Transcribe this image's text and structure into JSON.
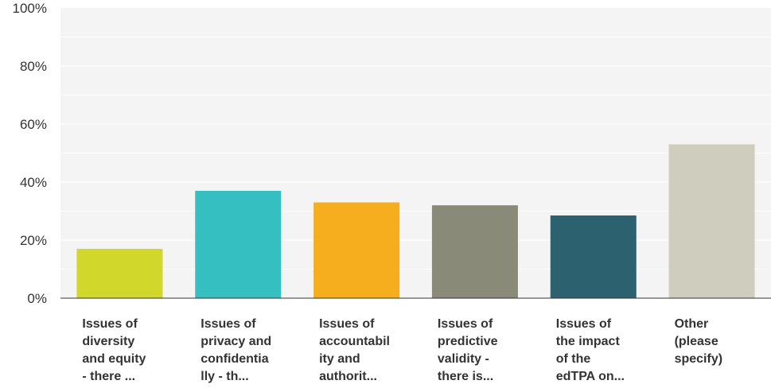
{
  "chart_data": {
    "type": "bar",
    "categories": [
      [
        "Issues of",
        "diversity",
        "and equity",
        "- there ..."
      ],
      [
        "Issues of",
        "privacy and",
        "confidentia",
        "lly - th..."
      ],
      [
        "Issues of",
        "accountabil",
        "ity and",
        "authorit..."
      ],
      [
        "Issues of",
        "predictive",
        "validity -",
        "there is..."
      ],
      [
        "Issues of",
        "the impact",
        "of the",
        "edTPA on..."
      ],
      [
        "Other",
        "(please",
        "specify)"
      ]
    ],
    "series": [
      {
        "values": [
          17,
          37,
          33,
          32,
          28.5,
          53
        ],
        "colors": [
          "#d1d72b",
          "#35bfc1",
          "#f7ae1e",
          "#898a78",
          "#2c6270",
          "#cfcdbe"
        ]
      }
    ],
    "y_ticks": [
      {
        "value": 0,
        "label": "0%"
      },
      {
        "value": 20,
        "label": "20%"
      },
      {
        "value": 40,
        "label": "40%"
      },
      {
        "value": 60,
        "label": "60%"
      },
      {
        "value": 80,
        "label": "80%"
      },
      {
        "value": 100,
        "label": "100%"
      }
    ],
    "ylim": [
      0,
      100
    ],
    "title": "",
    "xlabel": "",
    "ylabel": "",
    "grid": true,
    "minor_grid": true,
    "legend": "none",
    "background": "#f4f4f4",
    "grid_color": "#ffffff"
  }
}
